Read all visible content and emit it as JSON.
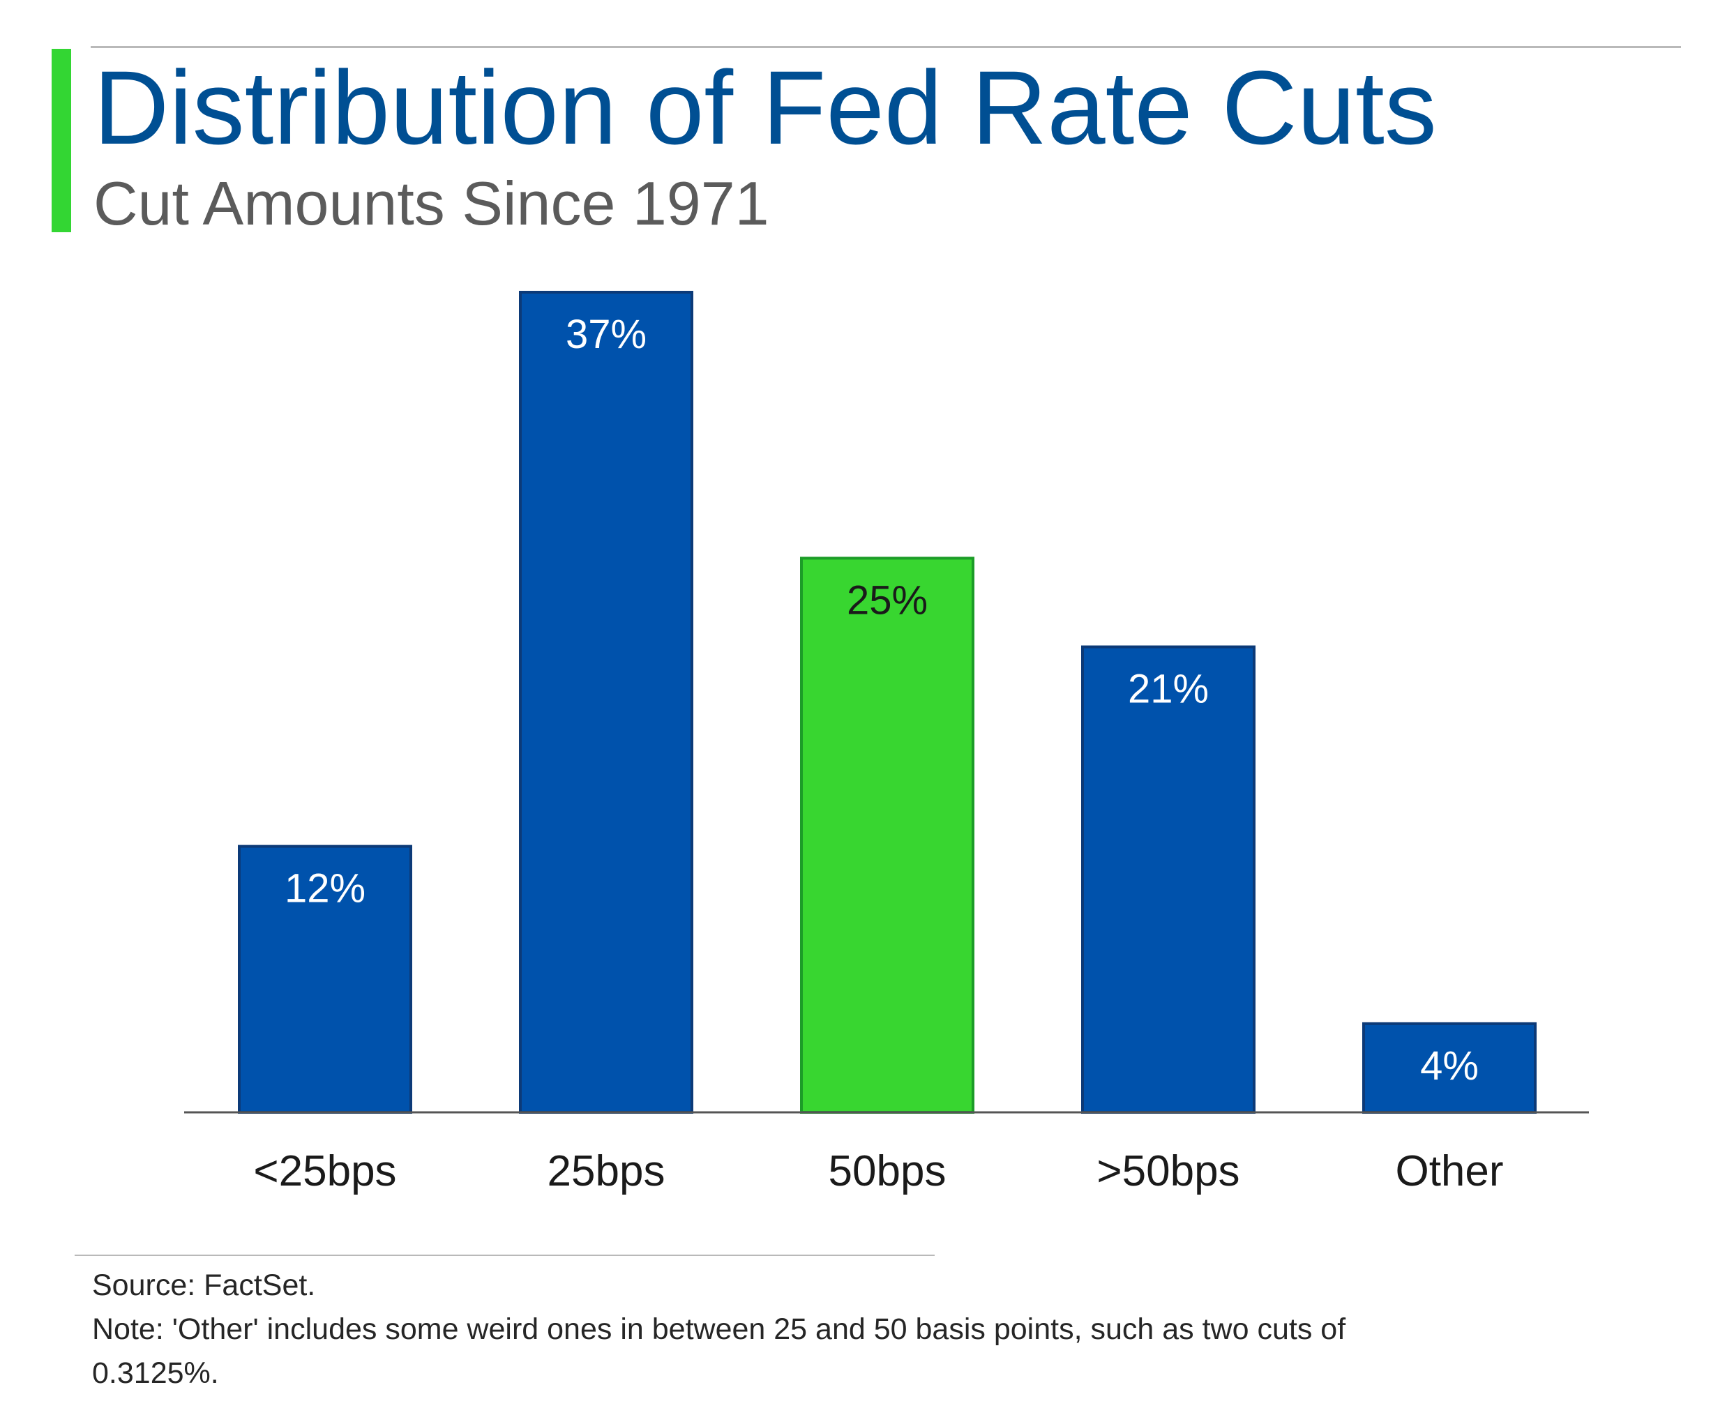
{
  "header": {
    "title": "Distribution of Fed Rate Cuts",
    "subtitle": "Cut Amounts Since 1971"
  },
  "colors": {
    "accent": "#33d633",
    "title": "#004f93",
    "bar_primary": "#0052ac",
    "bar_highlight": "#38d630",
    "bar_border": "#0c3a78",
    "highlight_border": "#1c9c28"
  },
  "chart_data": {
    "type": "bar",
    "categories": [
      "<25bps",
      "25bps",
      "50bps",
      ">50bps",
      "Other"
    ],
    "values": [
      12,
      37,
      25,
      21,
      4
    ],
    "data_labels": [
      "12%",
      "37%",
      "25%",
      "21%",
      "4%"
    ],
    "highlight_category": "50bps",
    "ylim": [
      0,
      37
    ],
    "grid": false,
    "legend": "none"
  },
  "footer": {
    "source": "Source: FactSet.",
    "note": "Note: 'Other' includes some weird ones in between 25 and 50 basis points, such as two cuts of 0.3125%."
  }
}
